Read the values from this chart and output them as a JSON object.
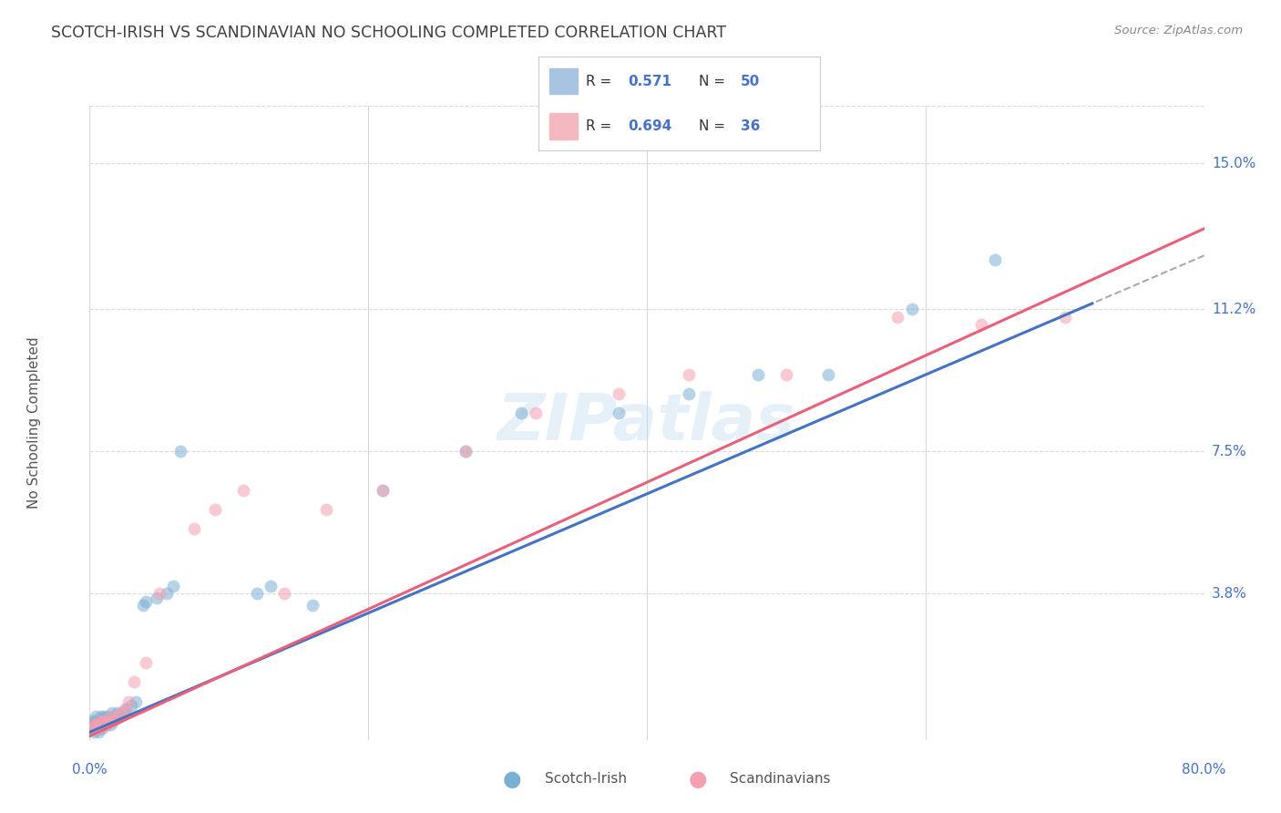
{
  "title": "SCOTCH-IRISH VS SCANDINAVIAN NO SCHOOLING COMPLETED CORRELATION CHART",
  "source": "Source: ZipAtlas.com",
  "ylabel": "No Schooling Completed",
  "ytick_labels": [
    "3.8%",
    "7.5%",
    "11.2%",
    "15.0%"
  ],
  "ytick_values": [
    0.038,
    0.075,
    0.112,
    0.15
  ],
  "xtick_labels": [
    "0.0%",
    "80.0%"
  ],
  "xlim": [
    0.0,
    0.8
  ],
  "ylim": [
    0.0,
    0.165
  ],
  "watermark": "ZIPatlas",
  "scotch_irish_x": [
    0.001,
    0.002,
    0.003,
    0.003,
    0.004,
    0.004,
    0.005,
    0.005,
    0.006,
    0.006,
    0.007,
    0.007,
    0.008,
    0.008,
    0.009,
    0.009,
    0.01,
    0.01,
    0.011,
    0.012,
    0.013,
    0.014,
    0.015,
    0.016,
    0.017,
    0.018,
    0.02,
    0.022,
    0.024,
    0.026,
    0.03,
    0.033,
    0.038,
    0.04,
    0.048,
    0.055,
    0.06,
    0.065,
    0.12,
    0.13,
    0.16,
    0.21,
    0.27,
    0.31,
    0.38,
    0.43,
    0.48,
    0.53,
    0.59,
    0.65
  ],
  "scotch_irish_y": [
    0.004,
    0.003,
    0.005,
    0.002,
    0.004,
    0.006,
    0.003,
    0.005,
    0.002,
    0.004,
    0.003,
    0.005,
    0.004,
    0.006,
    0.003,
    0.005,
    0.004,
    0.006,
    0.005,
    0.004,
    0.006,
    0.005,
    0.004,
    0.007,
    0.005,
    0.006,
    0.007,
    0.006,
    0.007,
    0.008,
    0.009,
    0.01,
    0.035,
    0.036,
    0.037,
    0.038,
    0.04,
    0.075,
    0.038,
    0.04,
    0.035,
    0.065,
    0.075,
    0.085,
    0.085,
    0.09,
    0.095,
    0.095,
    0.112,
    0.125
  ],
  "scandinavians_x": [
    0.001,
    0.002,
    0.003,
    0.004,
    0.005,
    0.006,
    0.007,
    0.008,
    0.009,
    0.01,
    0.011,
    0.012,
    0.013,
    0.015,
    0.017,
    0.02,
    0.022,
    0.025,
    0.028,
    0.032,
    0.04,
    0.05,
    0.075,
    0.09,
    0.11,
    0.14,
    0.17,
    0.21,
    0.27,
    0.32,
    0.38,
    0.43,
    0.5,
    0.58,
    0.64,
    0.7
  ],
  "scandinavians_y": [
    0.003,
    0.003,
    0.004,
    0.003,
    0.004,
    0.003,
    0.005,
    0.004,
    0.005,
    0.004,
    0.005,
    0.004,
    0.005,
    0.006,
    0.005,
    0.006,
    0.007,
    0.008,
    0.01,
    0.015,
    0.02,
    0.038,
    0.055,
    0.06,
    0.065,
    0.038,
    0.06,
    0.065,
    0.075,
    0.085,
    0.09,
    0.095,
    0.095,
    0.11,
    0.108,
    0.11
  ],
  "trend_line_scotch_slope": 0.155,
  "trend_line_scotch_intercept": 0.002,
  "trend_line_scand_slope": 0.165,
  "trend_line_scand_intercept": 0.001,
  "scotch_irish_color": "#7bafd4",
  "scandinavians_color": "#f4a0b0",
  "trend_scotch_color": "#4472c4",
  "trend_scand_color": "#e8607a",
  "dashed_color": "#aaaaaa",
  "background_color": "#ffffff",
  "title_color": "#404040",
  "axis_color": "#4472c4",
  "grid_color": "#d9d9d9",
  "legend_box_color": "#a8c4e0",
  "legend_pink_color": "#f4b8c1",
  "marker_size": 100,
  "marker_alpha": 0.55,
  "r_scotch": "0.571",
  "n_scotch": "50",
  "r_scand": "0.694",
  "n_scand": "36"
}
